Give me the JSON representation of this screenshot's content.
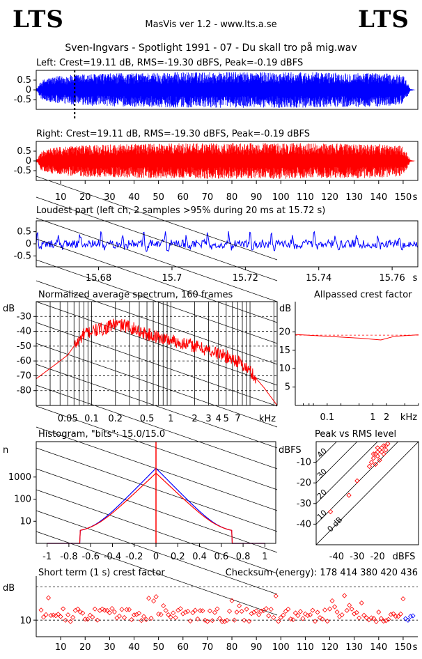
{
  "header": {
    "logo_left": "LTS",
    "logo_right": "LTS",
    "app": "MasVis ver 1.2 - www.lts.a.se",
    "file": "Sven-Ingvars - Spotlight 1991 - 07 - Du skall tro på mig.wav"
  },
  "colors": {
    "left": "#0000ff",
    "right": "#ff0000",
    "axis": "#000000"
  },
  "chart_data": [
    {
      "id": "left-waveform",
      "type": "area",
      "title": "Left: Crest=19.11 dB, RMS=-19.30 dBFS, Peak=-0.19 dBFS",
      "ylim": [
        -1,
        1
      ],
      "yticks": [
        "0.5",
        "0",
        "-0.5"
      ],
      "duration_s": 155,
      "marker_s": 15.72,
      "envelope": [
        {
          "x": 0.5,
          "v": 0.1
        },
        {
          "x": 2,
          "v": 0.5
        },
        {
          "x": 5,
          "v": 0.65
        },
        {
          "x": 10,
          "v": 0.75
        },
        {
          "x": 20,
          "v": 0.85
        },
        {
          "x": 40,
          "v": 0.9
        },
        {
          "x": 60,
          "v": 0.95
        },
        {
          "x": 80,
          "v": 0.95
        },
        {
          "x": 100,
          "v": 0.95
        },
        {
          "x": 120,
          "v": 0.93
        },
        {
          "x": 140,
          "v": 0.9
        },
        {
          "x": 150,
          "v": 0.8
        },
        {
          "x": 152,
          "v": 0.3
        },
        {
          "x": 153,
          "v": 0.05
        },
        {
          "x": 155,
          "v": 0.0
        }
      ]
    },
    {
      "id": "right-waveform",
      "type": "area",
      "title": "Right: Crest=19.11 dB, RMS=-19.30 dBFS, Peak=-0.19 dBFS",
      "ylim": [
        -1,
        1
      ],
      "yticks": [
        "0.5",
        "0",
        "-0.5"
      ],
      "xticks": [
        "10",
        "20",
        "30",
        "40",
        "50",
        "60",
        "70",
        "80",
        "90",
        "100",
        "110",
        "120",
        "130",
        "140",
        "150",
        "s"
      ],
      "duration_s": 155,
      "envelope": [
        {
          "x": 0.5,
          "v": 0.1
        },
        {
          "x": 2,
          "v": 0.5
        },
        {
          "x": 5,
          "v": 0.65
        },
        {
          "x": 10,
          "v": 0.75
        },
        {
          "x": 20,
          "v": 0.85
        },
        {
          "x": 40,
          "v": 0.9
        },
        {
          "x": 60,
          "v": 0.95
        },
        {
          "x": 80,
          "v": 0.95
        },
        {
          "x": 100,
          "v": 0.95
        },
        {
          "x": 120,
          "v": 0.93
        },
        {
          "x": 140,
          "v": 0.9
        },
        {
          "x": 150,
          "v": 0.8
        },
        {
          "x": 152,
          "v": 0.3
        },
        {
          "x": 153,
          "v": 0.05
        },
        {
          "x": 155,
          "v": 0.0
        }
      ]
    },
    {
      "id": "loudest-part",
      "type": "line",
      "title": "Loudest part (left  ch, 2 samples >95% during 20 ms at 15.72 s)",
      "xlim": [
        15.663,
        15.767
      ],
      "ylim": [
        -0.95,
        0.95
      ],
      "yticks": [
        "0.5",
        "0",
        "-0.5"
      ],
      "xticks": [
        "15.68",
        "15.7",
        "15.72",
        "15.74",
        "15.76",
        "s"
      ],
      "pulse_period_s": 0.0058,
      "pulse_peak": 0.65
    },
    {
      "id": "spectrum",
      "type": "line",
      "title": "Normalized average spectrum, 160 frames",
      "ylabel": "dB",
      "yticks": [
        "-30",
        "-40",
        "-50",
        "-60",
        "-70",
        "-80"
      ],
      "xticks": [
        "0.05",
        "0.1",
        "0.2",
        "0.5",
        "1",
        "2",
        "3",
        "4",
        "5",
        "7",
        "kHz"
      ],
      "xlim_khz": [
        0.02,
        22
      ],
      "ylim_db": [
        -90,
        -20
      ],
      "points": [
        {
          "f": 0.02,
          "db": -72
        },
        {
          "f": 0.03,
          "db": -65
        },
        {
          "f": 0.04,
          "db": -60
        },
        {
          "f": 0.05,
          "db": -56
        },
        {
          "f": 0.06,
          "db": -50
        },
        {
          "f": 0.07,
          "db": -46
        },
        {
          "f": 0.08,
          "db": -42
        },
        {
          "f": 0.1,
          "db": -40
        },
        {
          "f": 0.15,
          "db": -38
        },
        {
          "f": 0.2,
          "db": -35
        },
        {
          "f": 0.3,
          "db": -37
        },
        {
          "f": 0.5,
          "db": -42
        },
        {
          "f": 1,
          "db": -46
        },
        {
          "f": 2,
          "db": -50
        },
        {
          "f": 4,
          "db": -55
        },
        {
          "f": 7,
          "db": -60
        },
        {
          "f": 10,
          "db": -67
        },
        {
          "f": 15,
          "db": -78
        },
        {
          "f": 22,
          "db": -90
        }
      ]
    },
    {
      "id": "allpassed-crest",
      "type": "line",
      "title": "Allpassed crest factor",
      "ylabel": "dB",
      "yticks": [
        "20",
        "15",
        "10",
        "5"
      ],
      "xticks": [
        "0.1",
        "1",
        "2",
        "kHz"
      ],
      "ylim": [
        0,
        25
      ],
      "reference_db": 19.11,
      "points": [
        {
          "f": 0.02,
          "db": 19.3
        },
        {
          "f": 0.1,
          "db": 18.8
        },
        {
          "f": 0.5,
          "db": 18.3
        },
        {
          "f": 1.5,
          "db": 17.8
        },
        {
          "f": 3,
          "db": 18.8
        },
        {
          "f": 10,
          "db": 19.2
        }
      ]
    },
    {
      "id": "histogram",
      "type": "line",
      "title": "Histogram, \"bits\": 15.0/15.0",
      "ylabel": "n",
      "yticks": [
        "1000",
        "100",
        "10"
      ],
      "xticks": [
        "-1",
        "-0.8",
        "-0.6",
        "-0.4",
        "-0.2",
        "0",
        "0.2",
        "0.4",
        "0.6",
        "0.8",
        "1"
      ],
      "xlim": [
        -1.1,
        1.1
      ],
      "peak_left": 2500,
      "peak_right": 1500
    },
    {
      "id": "peak-vs-rms",
      "type": "scatter",
      "title": "Peak vs RMS level",
      "ylabel": "dBFS",
      "xlabel": "dBFS",
      "yticks": [
        "-10",
        "-20",
        "-30",
        "-40"
      ],
      "xticks": [
        "-40",
        "-30",
        "-20"
      ],
      "xlim": [
        -50,
        0
      ],
      "ylim": [
        -50,
        0
      ],
      "diag_labels": [
        "40",
        "30",
        "20",
        "10",
        "0 dB"
      ],
      "points": [
        {
          "rms": -21,
          "peak": -6
        },
        {
          "rms": -20,
          "peak": -5
        },
        {
          "rms": -19,
          "peak": -4
        },
        {
          "rms": -18,
          "peak": -3
        },
        {
          "rms": -17,
          "peak": -2
        },
        {
          "rms": -16,
          "peak": -2
        },
        {
          "rms": -18,
          "peak": -5
        },
        {
          "rms": -22,
          "peak": -8
        },
        {
          "rms": -23,
          "peak": -10
        },
        {
          "rms": -20,
          "peak": -7
        },
        {
          "rms": -19,
          "peak": -9
        },
        {
          "rms": -17,
          "peak": -6
        },
        {
          "rms": -21,
          "peak": -11
        },
        {
          "rms": -15,
          "peak": -1
        },
        {
          "rms": -24,
          "peak": -12
        },
        {
          "rms": -16,
          "peak": -4
        },
        {
          "rms": -22,
          "peak": -6
        },
        {
          "rms": -20,
          "peak": -3
        },
        {
          "rms": -30,
          "peak": -19
        },
        {
          "rms": -34,
          "peak": -26
        },
        {
          "rms": -43,
          "peak": -34
        }
      ]
    },
    {
      "id": "short-term-crest",
      "type": "scatter",
      "title": "Short term (1 s) crest factor",
      "checksum": "Checksum (energy):   178 414 380 420 436",
      "ylabel": "dB",
      "yticks": [
        "10"
      ],
      "xticks": [
        "10",
        "20",
        "30",
        "40",
        "50",
        "60",
        "70",
        "80",
        "90",
        "100",
        "110",
        "120",
        "130",
        "140",
        "150",
        "s"
      ],
      "ylim": [
        5,
        22
      ],
      "xlim": [
        0,
        156
      ],
      "dashed_db": [
        10,
        15,
        20
      ],
      "mean_db": 11.5
    }
  ]
}
